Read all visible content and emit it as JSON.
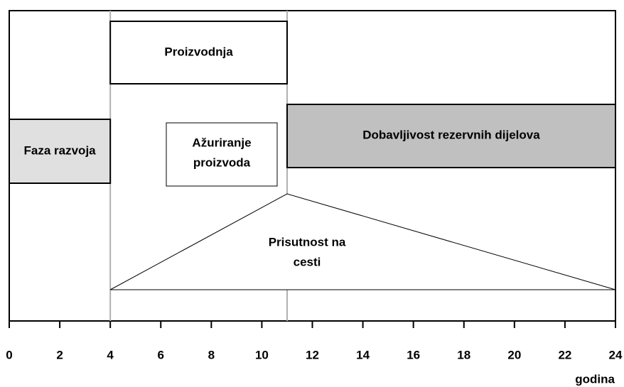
{
  "axis": {
    "label": "godina",
    "xlim": [
      0,
      24
    ],
    "xticks": [
      0,
      2,
      4,
      6,
      8,
      10,
      12,
      14,
      16,
      18,
      20,
      22,
      24
    ]
  },
  "phases": [
    {
      "lines": [
        "Faza razvoja"
      ],
      "start": 0,
      "end": 4
    },
    {
      "lines": [
        "Proizvodnja"
      ],
      "start": 4,
      "end": 11
    },
    {
      "lines": [
        "Dobavljivost rezervnih dijelova"
      ],
      "start": 11,
      "end": 24
    }
  ],
  "update_box": {
    "lines": [
      "Ažuriranje",
      "proizvoda"
    ]
  },
  "triangle": {
    "lines": [
      "Prisutnost na",
      "cesti"
    ],
    "start": 4,
    "peak": 11,
    "end": 24
  }
}
